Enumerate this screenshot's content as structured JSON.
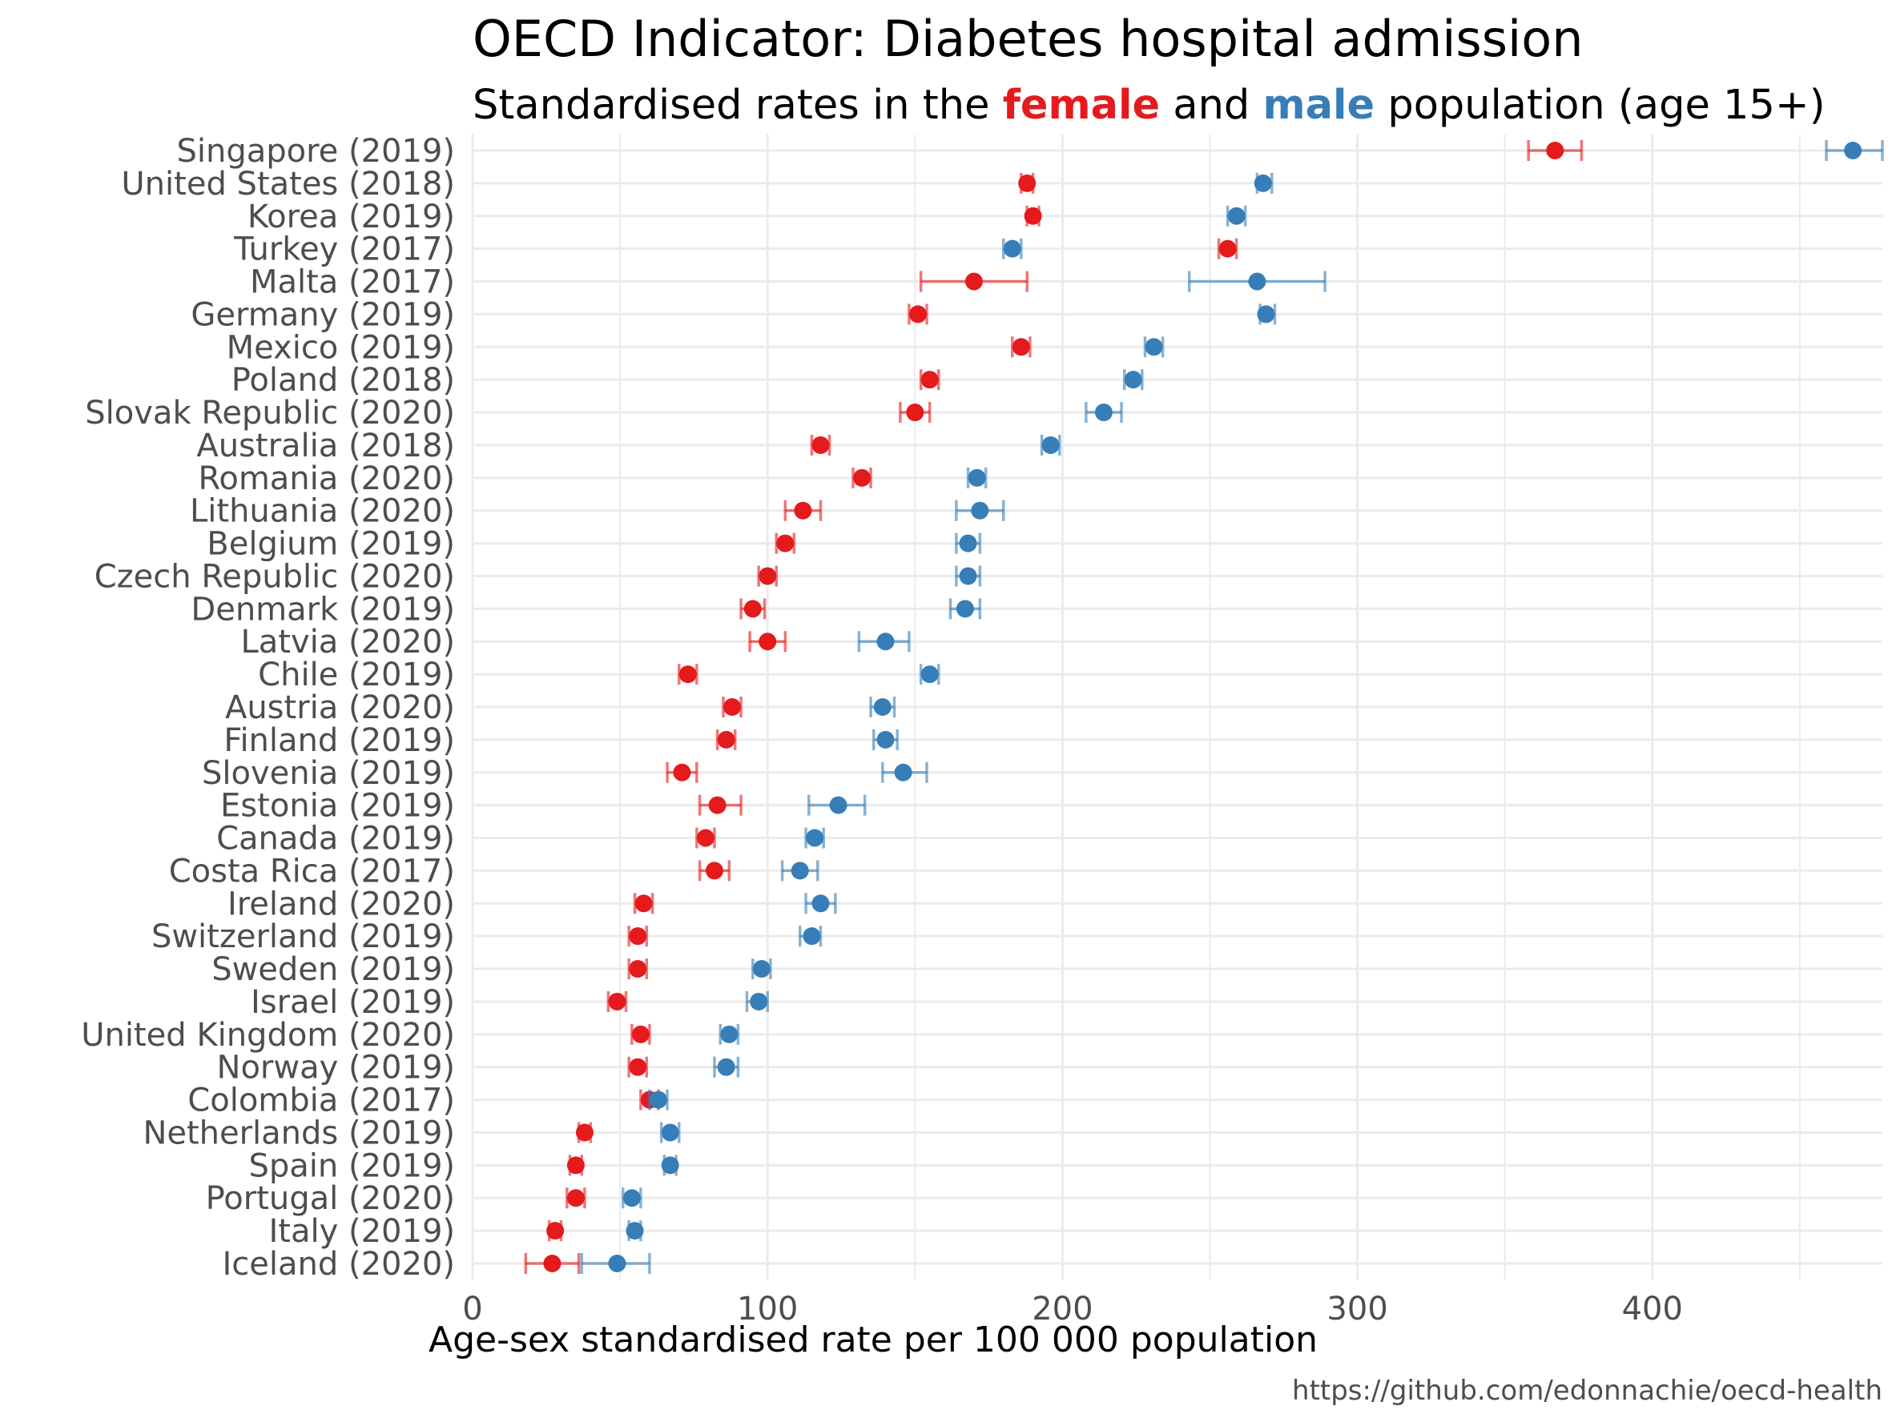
{
  "chart_data": {
    "type": "scatter",
    "title": "OECD Indicator: Diabetes hospital admission",
    "subtitle": {
      "before": "Standardised rates in the ",
      "female": "female",
      "middle": " and ",
      "male": "male",
      "after": " population (age 15+)"
    },
    "xlabel": "Age-sex standardised rate per 100 000 population",
    "caption": "https://github.com/edonnachie/oecd-health",
    "xlim": [
      0,
      478
    ],
    "xticks": [
      "0",
      "100",
      "200",
      "300",
      "400"
    ],
    "grid": true,
    "colors": {
      "female": "#e41a1c",
      "male": "#377eb8"
    },
    "categories": [
      "Singapore (2019)",
      "United States (2018)",
      "Korea (2019)",
      "Turkey (2017)",
      "Malta (2017)",
      "Germany (2019)",
      "Mexico (2019)",
      "Poland (2018)",
      "Slovak Republic (2020)",
      "Australia (2018)",
      "Romania (2020)",
      "Lithuania (2020)",
      "Belgium (2019)",
      "Czech Republic (2020)",
      "Denmark (2019)",
      "Latvia (2020)",
      "Chile (2019)",
      "Austria (2020)",
      "Finland (2019)",
      "Slovenia (2019)",
      "Estonia (2019)",
      "Canada (2019)",
      "Costa Rica (2017)",
      "Ireland (2020)",
      "Switzerland (2019)",
      "Sweden (2019)",
      "Israel (2019)",
      "United Kingdom (2020)",
      "Norway (2019)",
      "Colombia (2017)",
      "Netherlands (2019)",
      "Spain (2019)",
      "Portugal (2020)",
      "Italy (2019)",
      "Iceland (2020)"
    ],
    "series": [
      {
        "name": "female",
        "values": [
          367,
          188,
          190,
          256,
          170,
          151,
          186,
          155,
          150,
          118,
          132,
          112,
          106,
          100,
          95,
          100,
          73,
          88,
          86,
          71,
          83,
          79,
          82,
          58,
          56,
          56,
          49,
          57,
          56,
          60,
          38,
          35,
          35,
          28,
          27
        ],
        "lower": [
          358,
          186,
          188,
          253,
          152,
          148,
          183,
          152,
          145,
          115,
          129,
          106,
          103,
          97,
          91,
          94,
          70,
          85,
          83,
          66,
          77,
          76,
          77,
          55,
          53,
          53,
          46,
          54,
          53,
          57,
          36,
          33,
          32,
          26,
          18
        ],
        "upper": [
          376,
          190,
          192,
          259,
          188,
          154,
          189,
          158,
          155,
          121,
          135,
          118,
          109,
          103,
          99,
          106,
          76,
          91,
          89,
          76,
          91,
          82,
          87,
          61,
          59,
          59,
          52,
          60,
          59,
          63,
          40,
          37,
          38,
          30,
          36
        ]
      },
      {
        "name": "male",
        "values": [
          468,
          268,
          259,
          183,
          266,
          269,
          231,
          224,
          214,
          196,
          171,
          172,
          168,
          168,
          167,
          140,
          155,
          139,
          140,
          146,
          124,
          116,
          111,
          118,
          115,
          98,
          97,
          87,
          86,
          63,
          67,
          67,
          54,
          55,
          49
        ],
        "lower": [
          459,
          266,
          256,
          180,
          243,
          267,
          228,
          221,
          208,
          193,
          168,
          164,
          164,
          164,
          162,
          131,
          152,
          135,
          136,
          139,
          114,
          113,
          105,
          113,
          111,
          95,
          93,
          84,
          82,
          60,
          64,
          65,
          51,
          53,
          37
        ],
        "upper": [
          478,
          271,
          262,
          186,
          289,
          272,
          234,
          227,
          220,
          199,
          174,
          180,
          172,
          172,
          172,
          148,
          158,
          143,
          144,
          154,
          133,
          119,
          117,
          123,
          118,
          101,
          100,
          90,
          90,
          66,
          70,
          69,
          57,
          57,
          60
        ]
      }
    ]
  }
}
